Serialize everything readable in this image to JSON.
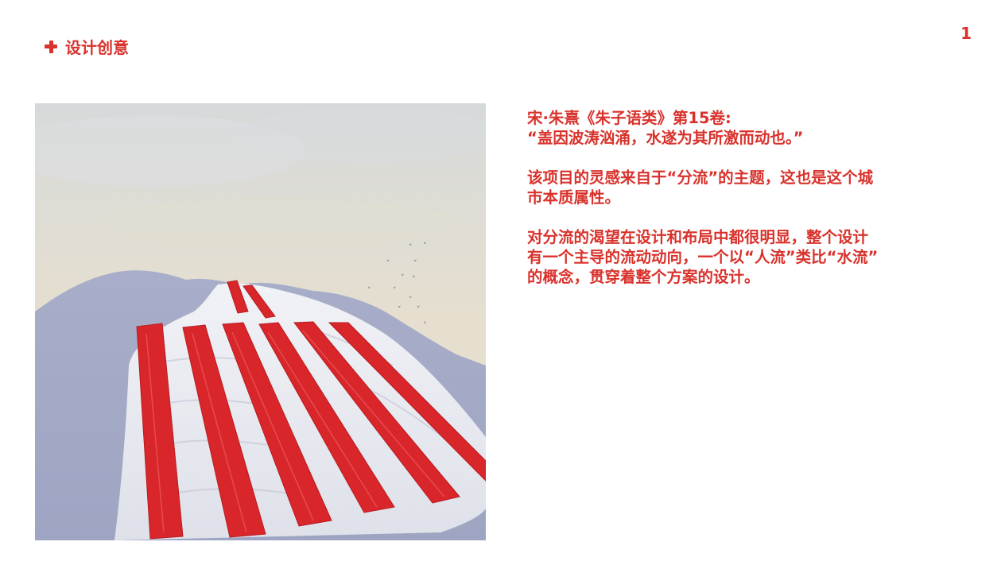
{
  "header": {
    "title": "设计创意",
    "icon": "plus-icon",
    "accent_color": "#d9322c"
  },
  "page_number": "1",
  "artwork": {
    "description_icon": "landscape-painting"
  },
  "text": {
    "quote_source": "宋·朱熹《朱子语类》第15卷:",
    "quote": "“盖因波涛汹涌，水遂为其所激而动也。”",
    "paragraph1_line1": "该项目的灵感来自于“分流”的主题，这也是这个城",
    "paragraph1_line2": "市本质属性。",
    "paragraph2_line1": "对分流的渴望在设计和布局中都很明显，整个设计",
    "paragraph2_line2": "有一个主导的流动动向，一个以“人流”类比“水流”",
    "paragraph2_line3": "的概念，贯穿着整个方案的设计。"
  }
}
